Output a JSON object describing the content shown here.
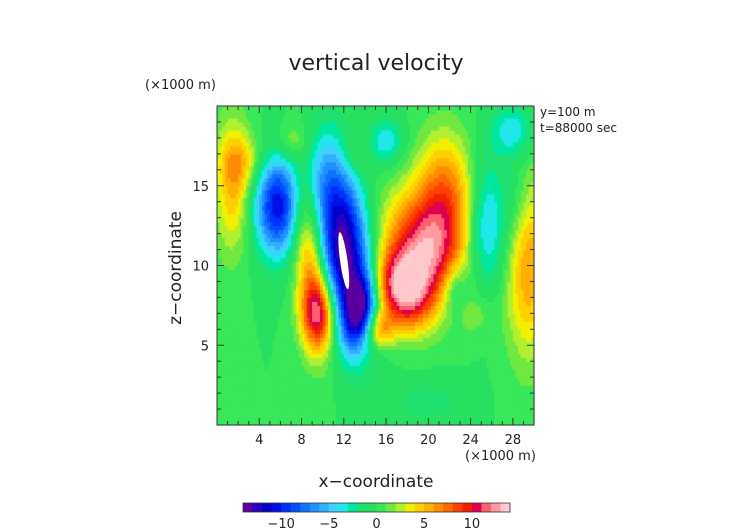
{
  "chart_data": {
    "type": "heatmap",
    "title": "vertical velocity",
    "xlabel": "x−coordinate",
    "ylabel": "z−coordinate",
    "x_unit": "(×1000 m)",
    "y_unit": "(×1000 m)",
    "annotations": [
      "y=100 m",
      "t=88000 sec"
    ],
    "xlim": [
      0,
      30
    ],
    "ylim": [
      0,
      20
    ],
    "xticks": [
      4,
      8,
      12,
      16,
      20,
      24,
      28
    ],
    "yticks": [
      5,
      10,
      15
    ],
    "colorbar": {
      "min": -14,
      "max": 14,
      "step": 1,
      "ticks": [
        -10,
        -5,
        0,
        5,
        10
      ],
      "colors": [
        "#5a00a0",
        "#2a00c0",
        "#0000c8",
        "#0010e6",
        "#0030ff",
        "#0050ff",
        "#1070ff",
        "#2090ff",
        "#30b0ff",
        "#40d0ff",
        "#20e8e8",
        "#00e8a0",
        "#20e070",
        "#28e060",
        "#38e858",
        "#70e840",
        "#b0f030",
        "#f0f000",
        "#ffd000",
        "#ffb000",
        "#ff8c00",
        "#ff6800",
        "#ff4000",
        "#f02000",
        "#e00050",
        "#ff6070",
        "#ff9aa0",
        "#ffc8cc"
      ]
    },
    "field_features": [
      {
        "x": 12.0,
        "z": 11.0,
        "value": -14,
        "sx": 1.7,
        "sz": 3.8,
        "tilt": -0.18
      },
      {
        "x": 5.8,
        "z": 13.8,
        "value": -11,
        "sx": 1.6,
        "sz": 2.2,
        "tilt": 0.0
      },
      {
        "x": 13.5,
        "z": 7.2,
        "value": -9,
        "sx": 1.0,
        "sz": 1.6,
        "tilt": 0.3
      },
      {
        "x": 8.8,
        "z": 10.6,
        "value": 7,
        "sx": 1.1,
        "sz": 3.8,
        "tilt": -0.15
      },
      {
        "x": 9.6,
        "z": 7.0,
        "value": 9,
        "sx": 1.1,
        "sz": 1.6,
        "tilt": 0.0
      },
      {
        "x": 17.6,
        "z": 8.5,
        "value": 13,
        "sx": 1.9,
        "sz": 1.6,
        "tilt": 0.5
      },
      {
        "x": 19.5,
        "z": 11.0,
        "value": 9,
        "sx": 2.8,
        "sz": 2.0,
        "tilt": 0.6
      },
      {
        "x": 21.5,
        "z": 14.0,
        "value": 8,
        "sx": 2.0,
        "sz": 2.8,
        "tilt": 0.0
      },
      {
        "x": 15.3,
        "z": 6.0,
        "value": 6,
        "sx": 1.0,
        "sz": 0.8,
        "tilt": 0.0
      },
      {
        "x": 29.5,
        "z": 10.0,
        "value": 6,
        "sx": 1.5,
        "sz": 4.0,
        "tilt": 0.0
      },
      {
        "x": 1.5,
        "z": 15.0,
        "value": 5,
        "sx": 1.2,
        "sz": 3.0,
        "tilt": 0.0
      },
      {
        "x": 2.5,
        "z": 16.5,
        "value": 3,
        "sx": 1.5,
        "sz": 1.2,
        "tilt": 0.0
      },
      {
        "x": 25.5,
        "z": 12.5,
        "value": -5,
        "sx": 1.3,
        "sz": 3.0,
        "tilt": 0.0
      },
      {
        "x": 22.5,
        "z": 8.5,
        "value": -4,
        "sx": 0.9,
        "sz": 1.3,
        "tilt": 0.0
      },
      {
        "x": 16.0,
        "z": 17.8,
        "value": -4,
        "sx": 1.2,
        "sz": 1.0,
        "tilt": 0.0
      },
      {
        "x": 28.0,
        "z": 18.5,
        "value": -4,
        "sx": 1.4,
        "sz": 1.2,
        "tilt": 0.0
      },
      {
        "x": 10.0,
        "z": 16.0,
        "value": -2,
        "sx": 1.5,
        "sz": 2.0,
        "tilt": 0.0
      },
      {
        "x": 28.3,
        "z": 14.0,
        "value": -2,
        "sx": 1.0,
        "sz": 2.0,
        "tilt": 0.0
      },
      {
        "x": 13.0,
        "z": 17.0,
        "value": 2,
        "sx": 1.0,
        "sz": 1.0,
        "tilt": 0.0
      },
      {
        "x": 7.0,
        "z": 17.8,
        "value": 2,
        "sx": 1.2,
        "sz": 0.8,
        "tilt": 0.0
      },
      {
        "x": 24.5,
        "z": 7.0,
        "value": 1.5,
        "sx": 1.5,
        "sz": 1.0,
        "tilt": 0.0
      },
      {
        "x": 20.0,
        "z": 1.5,
        "value": -1.5,
        "sx": 2.5,
        "sz": 1.0,
        "tilt": 0.0
      }
    ],
    "undefined_region": {
      "x": 12.0,
      "z": 10.3,
      "rx": 0.35,
      "rz": 1.8,
      "tilt_deg": -8
    }
  }
}
